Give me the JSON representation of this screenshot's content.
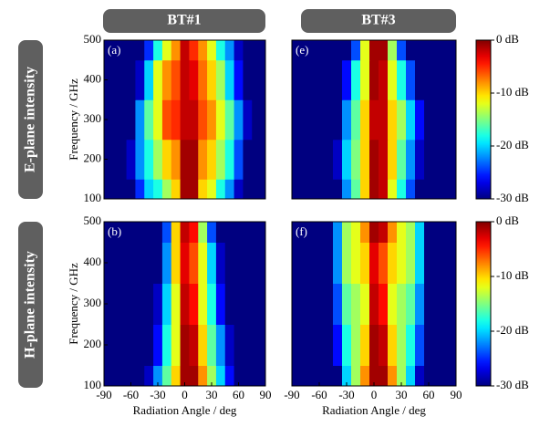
{
  "columns": [
    "BT#1",
    "BT#3"
  ],
  "rows": [
    "E-plane intensity",
    "H-plane intensity"
  ],
  "chart_data": [
    {
      "type": "heatmap",
      "panel_label": "(a)",
      "ylabel": "Frequency / GHz",
      "x": [
        -90,
        -80,
        -70,
        -60,
        -50,
        -40,
        -30,
        -20,
        -10,
        0,
        10,
        20,
        30,
        40,
        50,
        60,
        70,
        80,
        90
      ],
      "y": [
        100,
        200,
        300,
        400,
        500
      ],
      "z": [
        [
          -30,
          -30,
          -30,
          -30,
          -25,
          -20,
          -18,
          -14,
          -10,
          -1,
          -1,
          -10,
          -12,
          -18,
          -22,
          -28,
          -30,
          -30,
          -30
        ],
        [
          -30,
          -30,
          -30,
          -28,
          -22,
          -18,
          -14,
          -10,
          -8,
          -1,
          -1,
          -8,
          -10,
          -14,
          -18,
          -24,
          -30,
          -30,
          -30
        ],
        [
          -30,
          -30,
          -30,
          -30,
          -22,
          -16,
          -12,
          -6,
          -5,
          -2,
          -2,
          -6,
          -8,
          -12,
          -16,
          -22,
          -28,
          -30,
          -30
        ],
        [
          -30,
          -30,
          -30,
          -30,
          -28,
          -20,
          -12,
          -8,
          -6,
          -2,
          -3,
          -7,
          -10,
          -14,
          -20,
          -26,
          -30,
          -30,
          -30
        ],
        [
          -30,
          -30,
          -30,
          -30,
          -30,
          -25,
          -18,
          -12,
          -8,
          -2,
          -5,
          -8,
          -12,
          -18,
          -22,
          -28,
          -30,
          -30,
          -30
        ]
      ],
      "zlim": [
        -30,
        0
      ],
      "colormap": "jet",
      "ylim": [
        100,
        500
      ],
      "xlim": [
        -90,
        90
      ],
      "yticks": [
        100,
        200,
        300,
        400,
        500
      ]
    },
    {
      "type": "heatmap",
      "panel_label": "(e)",
      "x": [
        -90,
        -80,
        -70,
        -60,
        -50,
        -40,
        -30,
        -20,
        -10,
        0,
        10,
        20,
        30,
        40,
        50,
        60,
        70,
        80,
        90
      ],
      "y": [
        100,
        200,
        300,
        400,
        500
      ],
      "z": [
        [
          -30,
          -30,
          -30,
          -30,
          -30,
          -30,
          -22,
          -16,
          -10,
          -1,
          -2,
          -12,
          -18,
          -24,
          -30,
          -30,
          -30,
          -30,
          -30
        ],
        [
          -30,
          -30,
          -30,
          -30,
          -30,
          -28,
          -20,
          -15,
          -10,
          -1,
          -2,
          -10,
          -16,
          -22,
          -28,
          -30,
          -30,
          -30,
          -30
        ],
        [
          -30,
          -30,
          -30,
          -30,
          -30,
          -30,
          -22,
          -16,
          -10,
          -2,
          -2,
          -10,
          -14,
          -20,
          -26,
          -30,
          -30,
          -30,
          -30
        ],
        [
          -30,
          -30,
          -30,
          -30,
          -30,
          -30,
          -26,
          -18,
          -12,
          -1,
          -2,
          -12,
          -18,
          -24,
          -30,
          -30,
          -30,
          -30,
          -30
        ],
        [
          -30,
          -30,
          -30,
          -30,
          -30,
          -30,
          -30,
          -24,
          -12,
          -1,
          -1,
          -14,
          -24,
          -30,
          -30,
          -30,
          -30,
          -30,
          -30
        ]
      ],
      "zlim": [
        -30,
        0
      ],
      "colormap": "jet",
      "ylim": [
        100,
        500
      ],
      "xlim": [
        -90,
        90
      ],
      "colorbar": {
        "ticks": [
          {
            "value": 0,
            "label": "0 dB"
          },
          {
            "value": -10,
            "label": "-10 dB"
          },
          {
            "value": -20,
            "label": "-20 dB"
          },
          {
            "value": -30,
            "label": "-30 dB"
          }
        ]
      }
    },
    {
      "type": "heatmap",
      "panel_label": "(b)",
      "ylabel": "Frequency / GHz",
      "xlabel": "Radiation Angle / deg",
      "x": [
        -90,
        -80,
        -70,
        -60,
        -50,
        -40,
        -30,
        -20,
        -10,
        0,
        10,
        20,
        30,
        40,
        50,
        60,
        70,
        80,
        90
      ],
      "y": [
        100,
        200,
        300,
        400,
        500
      ],
      "z": [
        [
          -30,
          -30,
          -30,
          -30,
          -30,
          -28,
          -22,
          -16,
          -10,
          -1,
          -1,
          -8,
          -14,
          -20,
          -26,
          -30,
          -30,
          -30,
          -30
        ],
        [
          -30,
          -30,
          -30,
          -30,
          -30,
          -30,
          -26,
          -18,
          -12,
          -1,
          -2,
          -10,
          -16,
          -22,
          -28,
          -30,
          -30,
          -30,
          -30
        ],
        [
          -30,
          -30,
          -30,
          -30,
          -30,
          -30,
          -28,
          -20,
          -12,
          -2,
          -4,
          -12,
          -18,
          -26,
          -30,
          -30,
          -30,
          -30,
          -30
        ],
        [
          -30,
          -30,
          -30,
          -30,
          -30,
          -30,
          -30,
          -22,
          -10,
          -3,
          -6,
          -12,
          -20,
          -28,
          -30,
          -30,
          -30,
          -30,
          -30
        ],
        [
          -30,
          -30,
          -30,
          -30,
          -30,
          -30,
          -30,
          -24,
          -10,
          -2,
          -4,
          -14,
          -24,
          -30,
          -30,
          -30,
          -30,
          -30,
          -30
        ]
      ],
      "zlim": [
        -30,
        0
      ],
      "colormap": "jet",
      "ylim": [
        100,
        500
      ],
      "xlim": [
        -90,
        90
      ],
      "yticks": [
        100,
        200,
        300,
        400,
        500
      ],
      "xticks": [
        -90,
        -60,
        -30,
        0,
        30,
        60,
        90
      ]
    },
    {
      "type": "heatmap",
      "panel_label": "(f)",
      "xlabel": "Radiation Angle / deg",
      "x": [
        -90,
        -80,
        -70,
        -60,
        -50,
        -40,
        -30,
        -20,
        -10,
        0,
        10,
        20,
        30,
        40,
        50,
        60,
        70,
        80,
        90
      ],
      "y": [
        100,
        200,
        300,
        400,
        500
      ],
      "z": [
        [
          -30,
          -30,
          -30,
          -30,
          -30,
          -30,
          -20,
          -14,
          -8,
          -1,
          -1,
          -8,
          -14,
          -20,
          -28,
          -30,
          -30,
          -30,
          -30
        ],
        [
          -30,
          -30,
          -30,
          -30,
          -30,
          -26,
          -18,
          -14,
          -10,
          -1,
          -2,
          -10,
          -14,
          -18,
          -24,
          -30,
          -30,
          -30,
          -30
        ],
        [
          -30,
          -30,
          -30,
          -30,
          -30,
          -24,
          -16,
          -14,
          -12,
          -2,
          -4,
          -12,
          -14,
          -16,
          -22,
          -30,
          -30,
          -30,
          -30
        ],
        [
          -30,
          -30,
          -30,
          -30,
          -30,
          -22,
          -14,
          -12,
          -10,
          -3,
          -6,
          -10,
          -12,
          -14,
          -20,
          -30,
          -30,
          -30,
          -30
        ],
        [
          -30,
          -30,
          -30,
          -30,
          -30,
          -22,
          -14,
          -12,
          -8,
          -1,
          -2,
          -8,
          -12,
          -14,
          -20,
          -30,
          -30,
          -30,
          -30
        ]
      ],
      "zlim": [
        -30,
        0
      ],
      "colormap": "jet",
      "ylim": [
        100,
        500
      ],
      "xlim": [
        -90,
        90
      ],
      "xticks": [
        -90,
        -60,
        -30,
        0,
        30,
        60,
        90
      ],
      "colorbar": {
        "ticks": [
          {
            "value": 0,
            "label": "0 dB"
          },
          {
            "value": -10,
            "label": "-10 dB"
          },
          {
            "value": -20,
            "label": "-20 dB"
          },
          {
            "value": -30,
            "label": "-30 dB"
          }
        ]
      }
    }
  ]
}
